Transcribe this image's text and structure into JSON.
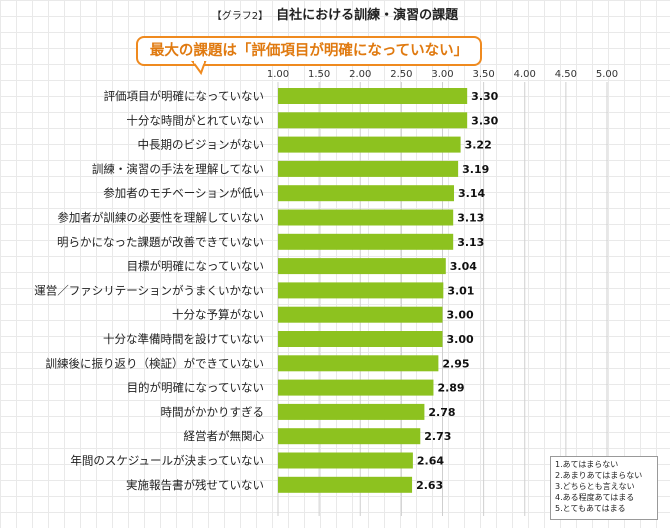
{
  "title": {
    "tag": "【グラフ2】",
    "main": "自社における訓練・演習の課題"
  },
  "callout": "最大の課題は「評価項目が明確になっていない」",
  "legend": [
    "1.あてはまらない",
    "2.あまりあてはまらない",
    "3.どちらとも言えない",
    "4.ある程度あてはまる",
    "5.とてもあてはまる"
  ],
  "colors": {
    "bar": "#8dc21f",
    "accent": "#ef8a1f",
    "callout_text": "#e07a10"
  },
  "chart_data": {
    "type": "bar",
    "orientation": "horizontal",
    "title": "自社における訓練・演習の課題",
    "categories": [
      "評価項目が明確になっていない",
      "十分な時間がとれていない",
      "中長期のビジョンがない",
      "訓練・演習の手法を理解してない",
      "参加者のモチベーションが低い",
      "参加者が訓練の必要性を理解していない",
      "明らかになった課題が改善できていない",
      "目標が明確になっていない",
      "運営／ファシリテーションがうまくいかない",
      "十分な予算がない",
      "十分な準備時間を設けていない",
      "訓練後に振り返り（検証）ができていない",
      "目的が明確になっていない",
      "時間がかかりすぎる",
      "経営者が無関心",
      "年間のスケジュールが決まっていない",
      "実施報告書が残せていない"
    ],
    "values": [
      3.3,
      3.3,
      3.22,
      3.19,
      3.14,
      3.13,
      3.13,
      3.04,
      3.01,
      3.0,
      3.0,
      2.95,
      2.89,
      2.78,
      2.73,
      2.64,
      2.63
    ],
    "value_labels": [
      "3.30",
      "3.30",
      "3.22",
      "3.19",
      "3.14",
      "3.13",
      "3.13",
      "3.04",
      "3.01",
      "3.00",
      "3.00",
      "2.95",
      "2.89",
      "2.78",
      "2.73",
      "2.64",
      "2.63"
    ],
    "ticks": [
      "1.00",
      "1.50",
      "2.00",
      "2.50",
      "3.00",
      "3.50",
      "4.00",
      "4.50",
      "5.00"
    ],
    "xlim": [
      1.0,
      5.0
    ],
    "xlabel": "",
    "ylabel": ""
  }
}
